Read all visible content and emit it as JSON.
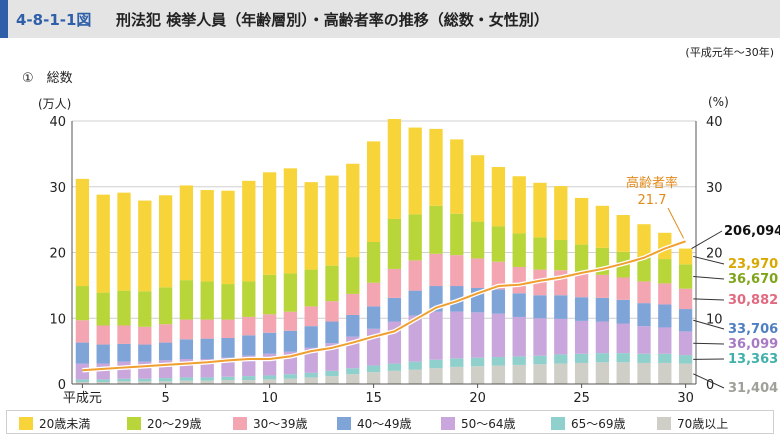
{
  "header": {
    "figure_number": "4-8-1-1図",
    "title": "刑法犯 検挙人員（年齢層別）・高齢者率の推移（総数・女性別）",
    "period": "(平成元年～30年)"
  },
  "section_label": "①　総数",
  "colors": {
    "20歳未満": "#f7d43a",
    "20～29歳": "#b8d63a",
    "30～39歳": "#f3a5b2",
    "40～49歳": "#7fa4d8",
    "50～64歳": "#c9a6dc",
    "65～69歳": "#8fd0cc",
    "70歳以上": "#cfcfc8",
    "rate_line": "#f0a030",
    "header_accent": "#2e5fa8"
  },
  "chart_data": {
    "type": "bar",
    "stacked": true,
    "x": [
      1,
      2,
      3,
      4,
      5,
      6,
      7,
      8,
      9,
      10,
      11,
      12,
      13,
      14,
      15,
      16,
      17,
      18,
      19,
      20,
      21,
      22,
      23,
      24,
      25,
      26,
      27,
      28,
      29,
      30
    ],
    "x_tick_labels": [
      {
        "x": 1,
        "label": "平成元"
      },
      {
        "x": 5,
        "label": "5"
      },
      {
        "x": 10,
        "label": "10"
      },
      {
        "x": 15,
        "label": "15"
      },
      {
        "x": 20,
        "label": "20"
      },
      {
        "x": 25,
        "label": "25"
      },
      {
        "x": 30,
        "label": "30"
      }
    ],
    "y_left": {
      "unit": "(万人)",
      "range": [
        0,
        40
      ],
      "ticks": [
        0,
        10,
        20,
        30,
        40
      ]
    },
    "y_right": {
      "unit": "(%)",
      "range": [
        0,
        40
      ],
      "ticks": [
        0,
        10,
        20,
        30,
        40
      ]
    },
    "grid": "horizontal",
    "series": [
      {
        "name": "70歳以上",
        "color": "#cfcfc8",
        "values": [
          0.3,
          0.3,
          0.4,
          0.4,
          0.4,
          0.5,
          0.5,
          0.6,
          0.6,
          0.7,
          0.8,
          1.0,
          1.2,
          1.5,
          1.8,
          2.0,
          2.2,
          2.4,
          2.6,
          2.7,
          2.8,
          2.9,
          3.0,
          3.1,
          3.2,
          3.3,
          3.3,
          3.2,
          3.2,
          3.1
        ]
      },
      {
        "name": "65～69歳",
        "color": "#8fd0cc",
        "values": [
          0.4,
          0.4,
          0.4,
          0.4,
          0.5,
          0.5,
          0.5,
          0.5,
          0.6,
          0.6,
          0.7,
          0.7,
          0.8,
          0.9,
          1.0,
          1.1,
          1.2,
          1.3,
          1.3,
          1.3,
          1.3,
          1.3,
          1.3,
          1.4,
          1.4,
          1.4,
          1.4,
          1.4,
          1.4,
          1.3
        ]
      },
      {
        "name": "50～64歳",
        "color": "#c9a6dc",
        "values": [
          2.4,
          2.4,
          2.6,
          2.6,
          2.7,
          2.8,
          2.8,
          2.9,
          3.1,
          3.3,
          3.4,
          3.8,
          4.2,
          4.8,
          5.6,
          6.4,
          7.0,
          7.3,
          7.1,
          6.9,
          6.6,
          6.0,
          5.7,
          5.4,
          5.0,
          4.8,
          4.5,
          4.2,
          4.0,
          3.6
        ]
      },
      {
        "name": "40～49歳",
        "color": "#7fa4d8",
        "values": [
          3.2,
          2.9,
          2.7,
          2.6,
          2.7,
          3.0,
          3.1,
          3.0,
          3.1,
          3.2,
          3.2,
          3.3,
          3.3,
          3.3,
          3.4,
          3.6,
          3.8,
          3.9,
          3.9,
          3.7,
          3.7,
          3.6,
          3.5,
          3.6,
          3.6,
          3.6,
          3.6,
          3.5,
          3.5,
          3.4
        ]
      },
      {
        "name": "30～39歳",
        "color": "#f3a5b2",
        "values": [
          3.4,
          2.9,
          2.8,
          2.7,
          2.8,
          3.0,
          2.9,
          2.8,
          2.8,
          2.8,
          2.9,
          3.0,
          3.1,
          3.2,
          3.6,
          4.4,
          4.6,
          4.9,
          4.7,
          4.5,
          4.2,
          4.0,
          3.9,
          3.8,
          3.6,
          3.5,
          3.4,
          3.3,
          3.2,
          3.1
        ]
      },
      {
        "name": "20～29歳",
        "color": "#b8d63a",
        "values": [
          5.2,
          5.0,
          5.3,
          5.4,
          5.6,
          6.0,
          5.8,
          5.4,
          5.4,
          6.0,
          5.8,
          5.6,
          5.4,
          5.6,
          6.2,
          7.6,
          7.0,
          7.3,
          6.3,
          5.6,
          5.4,
          5.1,
          4.9,
          4.6,
          4.4,
          4.1,
          3.9,
          3.8,
          3.7,
          3.7
        ]
      },
      {
        "name": "20歳未満",
        "color": "#f7d43a",
        "values": [
          16.3,
          14.9,
          14.9,
          13.8,
          14.0,
          14.4,
          13.9,
          14.2,
          15.3,
          15.6,
          16.0,
          13.3,
          13.7,
          14.2,
          15.3,
          15.2,
          13.2,
          11.7,
          11.3,
          10.1,
          9.0,
          8.7,
          8.3,
          8.2,
          7.1,
          6.4,
          5.6,
          4.9,
          4.0,
          2.4
        ]
      }
    ],
    "line": {
      "name": "高齢者率",
      "axis": "right",
      "values": [
        2.1,
        2.3,
        2.5,
        2.7,
        2.9,
        3.1,
        3.3,
        3.6,
        3.8,
        3.8,
        4.2,
        5.0,
        5.5,
        6.3,
        7.2,
        8.0,
        9.8,
        11.6,
        12.6,
        13.8,
        14.9,
        15.1,
        15.7,
        16.2,
        16.9,
        17.5,
        18.3,
        19.2,
        20.6,
        21.7
      ]
    },
    "annotations": {
      "rate_label": "高齢者率",
      "rate_value": "21.7",
      "total_label": "206,094",
      "series_end_labels": [
        {
          "series": "20歳未満",
          "text": "23,970"
        },
        {
          "series": "20～29歳",
          "text": "36,670"
        },
        {
          "series": "30～39歳",
          "text": "30,882"
        },
        {
          "series": "40～49歳",
          "text": "33,706"
        },
        {
          "series": "50～64歳",
          "text": "36,099"
        },
        {
          "series": "65～69歳",
          "text": "13,363"
        },
        {
          "series": "70歳以上",
          "text": "31,404"
        }
      ]
    },
    "legend": {
      "placement": "bottom",
      "items": [
        "20歳未満",
        "20～29歳",
        "30～39歳",
        "40～49歳",
        "50～64歳",
        "65～69歳",
        "70歳以上"
      ]
    }
  }
}
